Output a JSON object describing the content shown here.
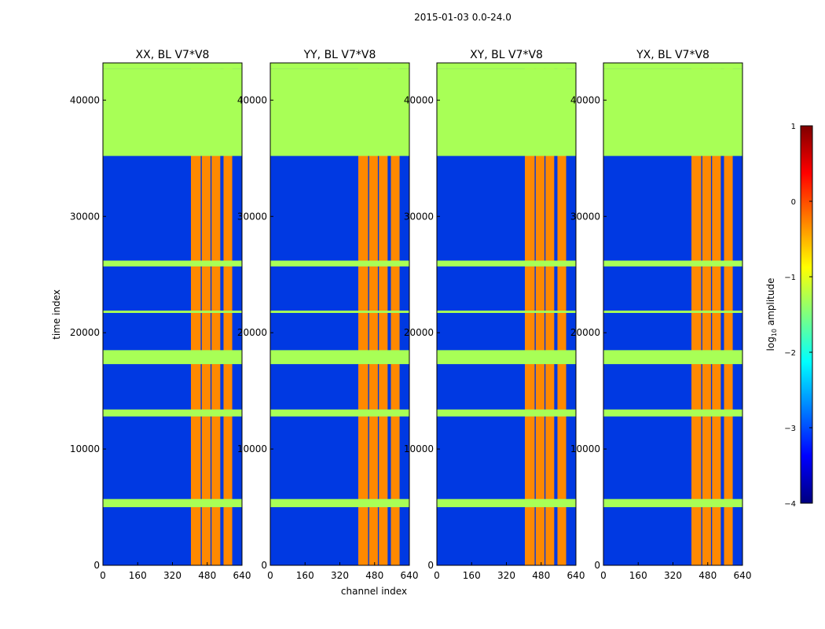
{
  "figure": {
    "suptitle": "2015-01-03 0.0-24.0"
  },
  "colorbar": {
    "label_main": "log",
    "label_sub": "10",
    "label_tail": " amplitude",
    "range": [
      -4,
      1
    ],
    "ticks": [
      {
        "value": -4,
        "label": "−4"
      },
      {
        "value": -3,
        "label": "−3"
      },
      {
        "value": -2,
        "label": "−2"
      },
      {
        "value": -1,
        "label": "−1"
      },
      {
        "value": 0,
        "label": "0"
      },
      {
        "value": 1,
        "label": "1"
      }
    ],
    "colormap": [
      "#00007f",
      "#0000ff",
      "#007fff",
      "#00ffff",
      "#7fff7f",
      "#ffff00",
      "#ff7f00",
      "#ff0000",
      "#7f0000"
    ]
  },
  "chart_data": {
    "type": "heatmap",
    "xlabel": "channel index",
    "ylabel": "time index",
    "xlim": [
      0,
      640
    ],
    "ylim": [
      0,
      43200
    ],
    "xticks": [
      {
        "value": 0,
        "label": "0"
      },
      {
        "value": 160,
        "label": "160"
      },
      {
        "value": 320,
        "label": "320"
      },
      {
        "value": 480,
        "label": "480"
      },
      {
        "value": 640,
        "label": "640"
      }
    ],
    "yticks": [
      {
        "value": 0,
        "label": "0"
      },
      {
        "value": 10000,
        "label": "10000"
      },
      {
        "value": 20000,
        "label": "20000"
      },
      {
        "value": 30000,
        "label": "30000"
      },
      {
        "value": 40000,
        "label": "40000"
      }
    ],
    "panels": [
      {
        "title": "XX, BL V7*V8",
        "pol": "XX"
      },
      {
        "title": "YY, BL V7*V8",
        "pol": "YY"
      },
      {
        "title": "XY, BL V7*V8",
        "pol": "XY"
      },
      {
        "title": "YX, BL V7*V8",
        "pol": "YX"
      }
    ],
    "flagged_time_ranges": [
      [
        42700,
        43200
      ],
      [
        35200,
        42700
      ],
      [
        25700,
        26200
      ],
      [
        21700,
        21900
      ],
      [
        17300,
        18500
      ],
      [
        12800,
        13400
      ],
      [
        5000,
        5700
      ]
    ],
    "hot_channel_ranges": [
      [
        405,
        450
      ],
      [
        455,
        495
      ],
      [
        500,
        540
      ],
      [
        555,
        595
      ]
    ],
    "background_log_amplitude": -3,
    "hot_log_amplitude": -0.3,
    "flagged_log_amplitude": -1.3
  }
}
